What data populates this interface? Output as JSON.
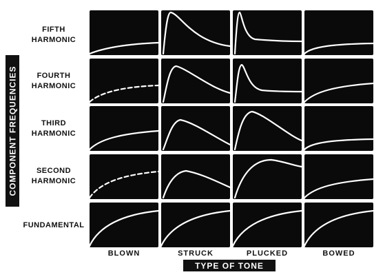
{
  "y_axis_label": "COMPONENT FREQUENCIES",
  "x_axis_label": "TYPE OF TONE",
  "rows": [
    {
      "line1": "FIFTH",
      "line2": "HARMONIC"
    },
    {
      "line1": "FOURTH",
      "line2": "HARMONIC"
    },
    {
      "line1": "THIRD",
      "line2": "HARMONIC"
    },
    {
      "line1": "SECOND",
      "line2": "HARMONIC"
    },
    {
      "line1": "FUNDAMENTAL",
      "line2": ""
    }
  ],
  "columns": [
    "BLOWN",
    "STRUCK",
    "PLUCKED",
    "BOWED"
  ],
  "curves": [
    [
      "rise-low",
      "peak-high-fast",
      "spike-sharp",
      "rise-small"
    ],
    [
      "rise-dashed",
      "peak-mid",
      "spike-mid",
      "rise-mid"
    ],
    [
      "rise-mid",
      "peak-low",
      "peak-tall-round",
      "rise-small"
    ],
    [
      "rise-dashed-high",
      "hump-low",
      "hump-broad",
      "rise-mid"
    ],
    [
      "rise-full",
      "rise-full",
      "rise-full",
      "rise-full"
    ]
  ],
  "colors": {
    "panel": "#0a0a0a",
    "curve": "#ffffff",
    "background": "#ffffff"
  }
}
